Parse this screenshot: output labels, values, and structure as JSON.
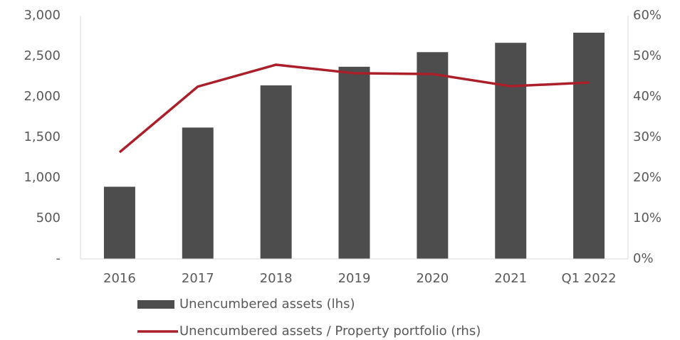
{
  "chart_data": {
    "type": "bar-line",
    "categories": [
      "2016",
      "2017",
      "2018",
      "2019",
      "2020",
      "2021",
      "Q1 2022"
    ],
    "series": [
      {
        "name": "Unencumbered assets (lhs)",
        "type": "bar",
        "color": "#4d4d4d",
        "values": [
          890,
          1620,
          2140,
          2370,
          2550,
          2665,
          2790
        ]
      },
      {
        "name": "Unencumbered assets / Property portfolio (rhs)",
        "type": "line",
        "axis": "y2",
        "color": "#ab1f2a",
        "values": [
          26.3,
          42.5,
          47.9,
          45.8,
          45.6,
          42.6,
          43.5
        ]
      }
    ],
    "ylim": [
      0,
      3000
    ],
    "yticks": [
      {
        "value": 0,
        "label": "-"
      },
      500,
      {
        "value": 1000,
        "label": "1,000"
      },
      {
        "value": 1500,
        "label": "1,500"
      },
      {
        "value": 2000,
        "label": "2,000"
      },
      {
        "value": 2500,
        "label": "2,500"
      },
      {
        "value": 3000,
        "label": "3,000"
      }
    ],
    "y2lim": [
      0,
      60
    ],
    "y2ticks": [
      {
        "value": 0,
        "label": "0%"
      },
      {
        "value": 10,
        "label": "10%"
      },
      {
        "value": 20,
        "label": "20%"
      },
      {
        "value": 30,
        "label": "30%"
      },
      {
        "value": 40,
        "label": "40%"
      },
      {
        "value": 50,
        "label": "50%"
      },
      {
        "value": 60,
        "label": "60%"
      }
    ],
    "grid": false,
    "legend": "bottom"
  }
}
